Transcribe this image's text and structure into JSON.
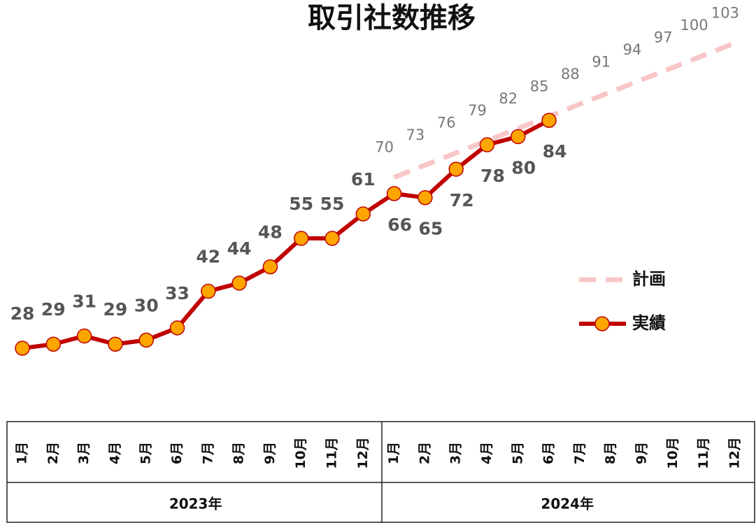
{
  "chart_data": {
    "type": "line",
    "title": "取引社数推移",
    "categories": [
      "1月",
      "2月",
      "3月",
      "4月",
      "5月",
      "6月",
      "7月",
      "8月",
      "9月",
      "10月",
      "11月",
      "12月",
      "1月",
      "2月",
      "3月",
      "4月",
      "5月",
      "6月",
      "7月",
      "8月",
      "9月",
      "10月",
      "11月",
      "12月"
    ],
    "years": [
      "2023年",
      "2024年"
    ],
    "series": [
      {
        "name": "計画",
        "color": "#f8c6c6",
        "dashed": true,
        "values": [
          null,
          null,
          null,
          null,
          null,
          null,
          null,
          null,
          null,
          null,
          null,
          null,
          70,
          73,
          76,
          79,
          82,
          85,
          88,
          91,
          94,
          97,
          100,
          103
        ]
      },
      {
        "name": "実績",
        "color": "#c00000",
        "marker_color": "#ffa500",
        "values": [
          28,
          29,
          31,
          29,
          30,
          33,
          42,
          44,
          48,
          55,
          55,
          61,
          66,
          65,
          72,
          78,
          80,
          84,
          null,
          null,
          null,
          null,
          null,
          null
        ]
      }
    ],
    "ylim": [
      20,
      110
    ]
  }
}
